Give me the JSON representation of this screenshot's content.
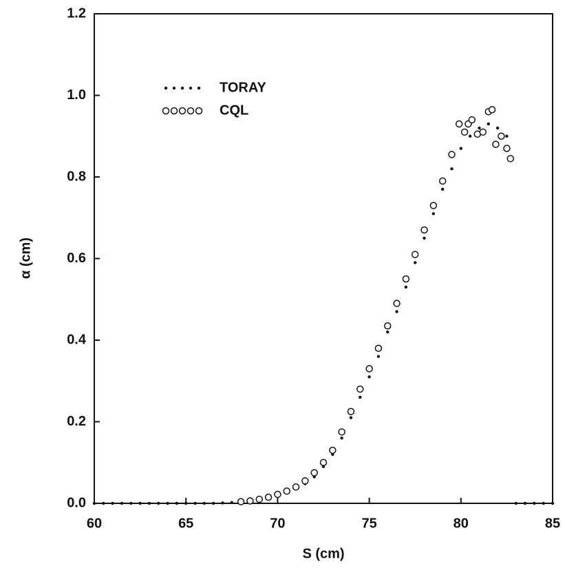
{
  "chart_data": {
    "type": "scatter",
    "xlabel": "S (cm)",
    "ylabel": "α (cm)",
    "xlim": [
      60,
      85
    ],
    "xticks": [
      60,
      65,
      70,
      75,
      80,
      85
    ],
    "ylim": [
      0,
      1.2
    ],
    "yticks": [
      {
        "value": 0,
        "label": "0.0"
      },
      0.2,
      0.4,
      0.6,
      0.8,
      {
        "value": 1,
        "label": "1.0"
      },
      1.2
    ],
    "legend": "upper left",
    "series": [
      {
        "name": "TORAY",
        "color": "#111111",
        "marker": "dot",
        "x": [
          60,
          60.5,
          61,
          61.5,
          62,
          62.5,
          63,
          63.5,
          64,
          64.5,
          65,
          65.5,
          66,
          66.5,
          67,
          67.5,
          68,
          68.5,
          69,
          69.5,
          70,
          70.5,
          71,
          71.5,
          72,
          72.5,
          73,
          73.5,
          74,
          74.5,
          75,
          75.5,
          76,
          76.5,
          77,
          77.5,
          78,
          78.5,
          79,
          79.5,
          80,
          80.5,
          81,
          81.5,
          82,
          82.5,
          83,
          83.5,
          84,
          84.5,
          85
        ],
        "values": [
          0,
          0,
          0,
          0,
          0,
          0,
          0,
          0,
          0,
          0,
          0,
          0,
          0,
          0,
          0.001,
          0.002,
          0.003,
          0.005,
          0.008,
          0.013,
          0.02,
          0.027,
          0.035,
          0.048,
          0.065,
          0.09,
          0.12,
          0.16,
          0.21,
          0.26,
          0.31,
          0.36,
          0.42,
          0.47,
          0.53,
          0.59,
          0.65,
          0.71,
          0.77,
          0.82,
          0.87,
          0.9,
          0.92,
          0.93,
          0.92,
          0.9,
          0,
          0,
          0,
          0,
          0
        ]
      },
      {
        "name": "CQL",
        "color": "#111111",
        "marker": "circle",
        "x": [
          68,
          68.5,
          69,
          69.5,
          70,
          70.5,
          71,
          71.5,
          72,
          72.5,
          73,
          73.5,
          74,
          74.5,
          75,
          75.5,
          76,
          76.5,
          77,
          77.5,
          78,
          78.5,
          79,
          79.5,
          79.9,
          80.2,
          80.4,
          80.6,
          80.9,
          81.2,
          81.5,
          81.7,
          81.9,
          82.2,
          82.5,
          82.7
        ],
        "values": [
          0.004,
          0.006,
          0.01,
          0.015,
          0.022,
          0.03,
          0.04,
          0.055,
          0.075,
          0.1,
          0.13,
          0.175,
          0.225,
          0.28,
          0.33,
          0.38,
          0.435,
          0.49,
          0.55,
          0.61,
          0.67,
          0.73,
          0.79,
          0.855,
          0.93,
          0.91,
          0.93,
          0.94,
          0.905,
          0.91,
          0.96,
          0.965,
          0.88,
          0.9,
          0.87,
          0.845
        ]
      }
    ]
  }
}
